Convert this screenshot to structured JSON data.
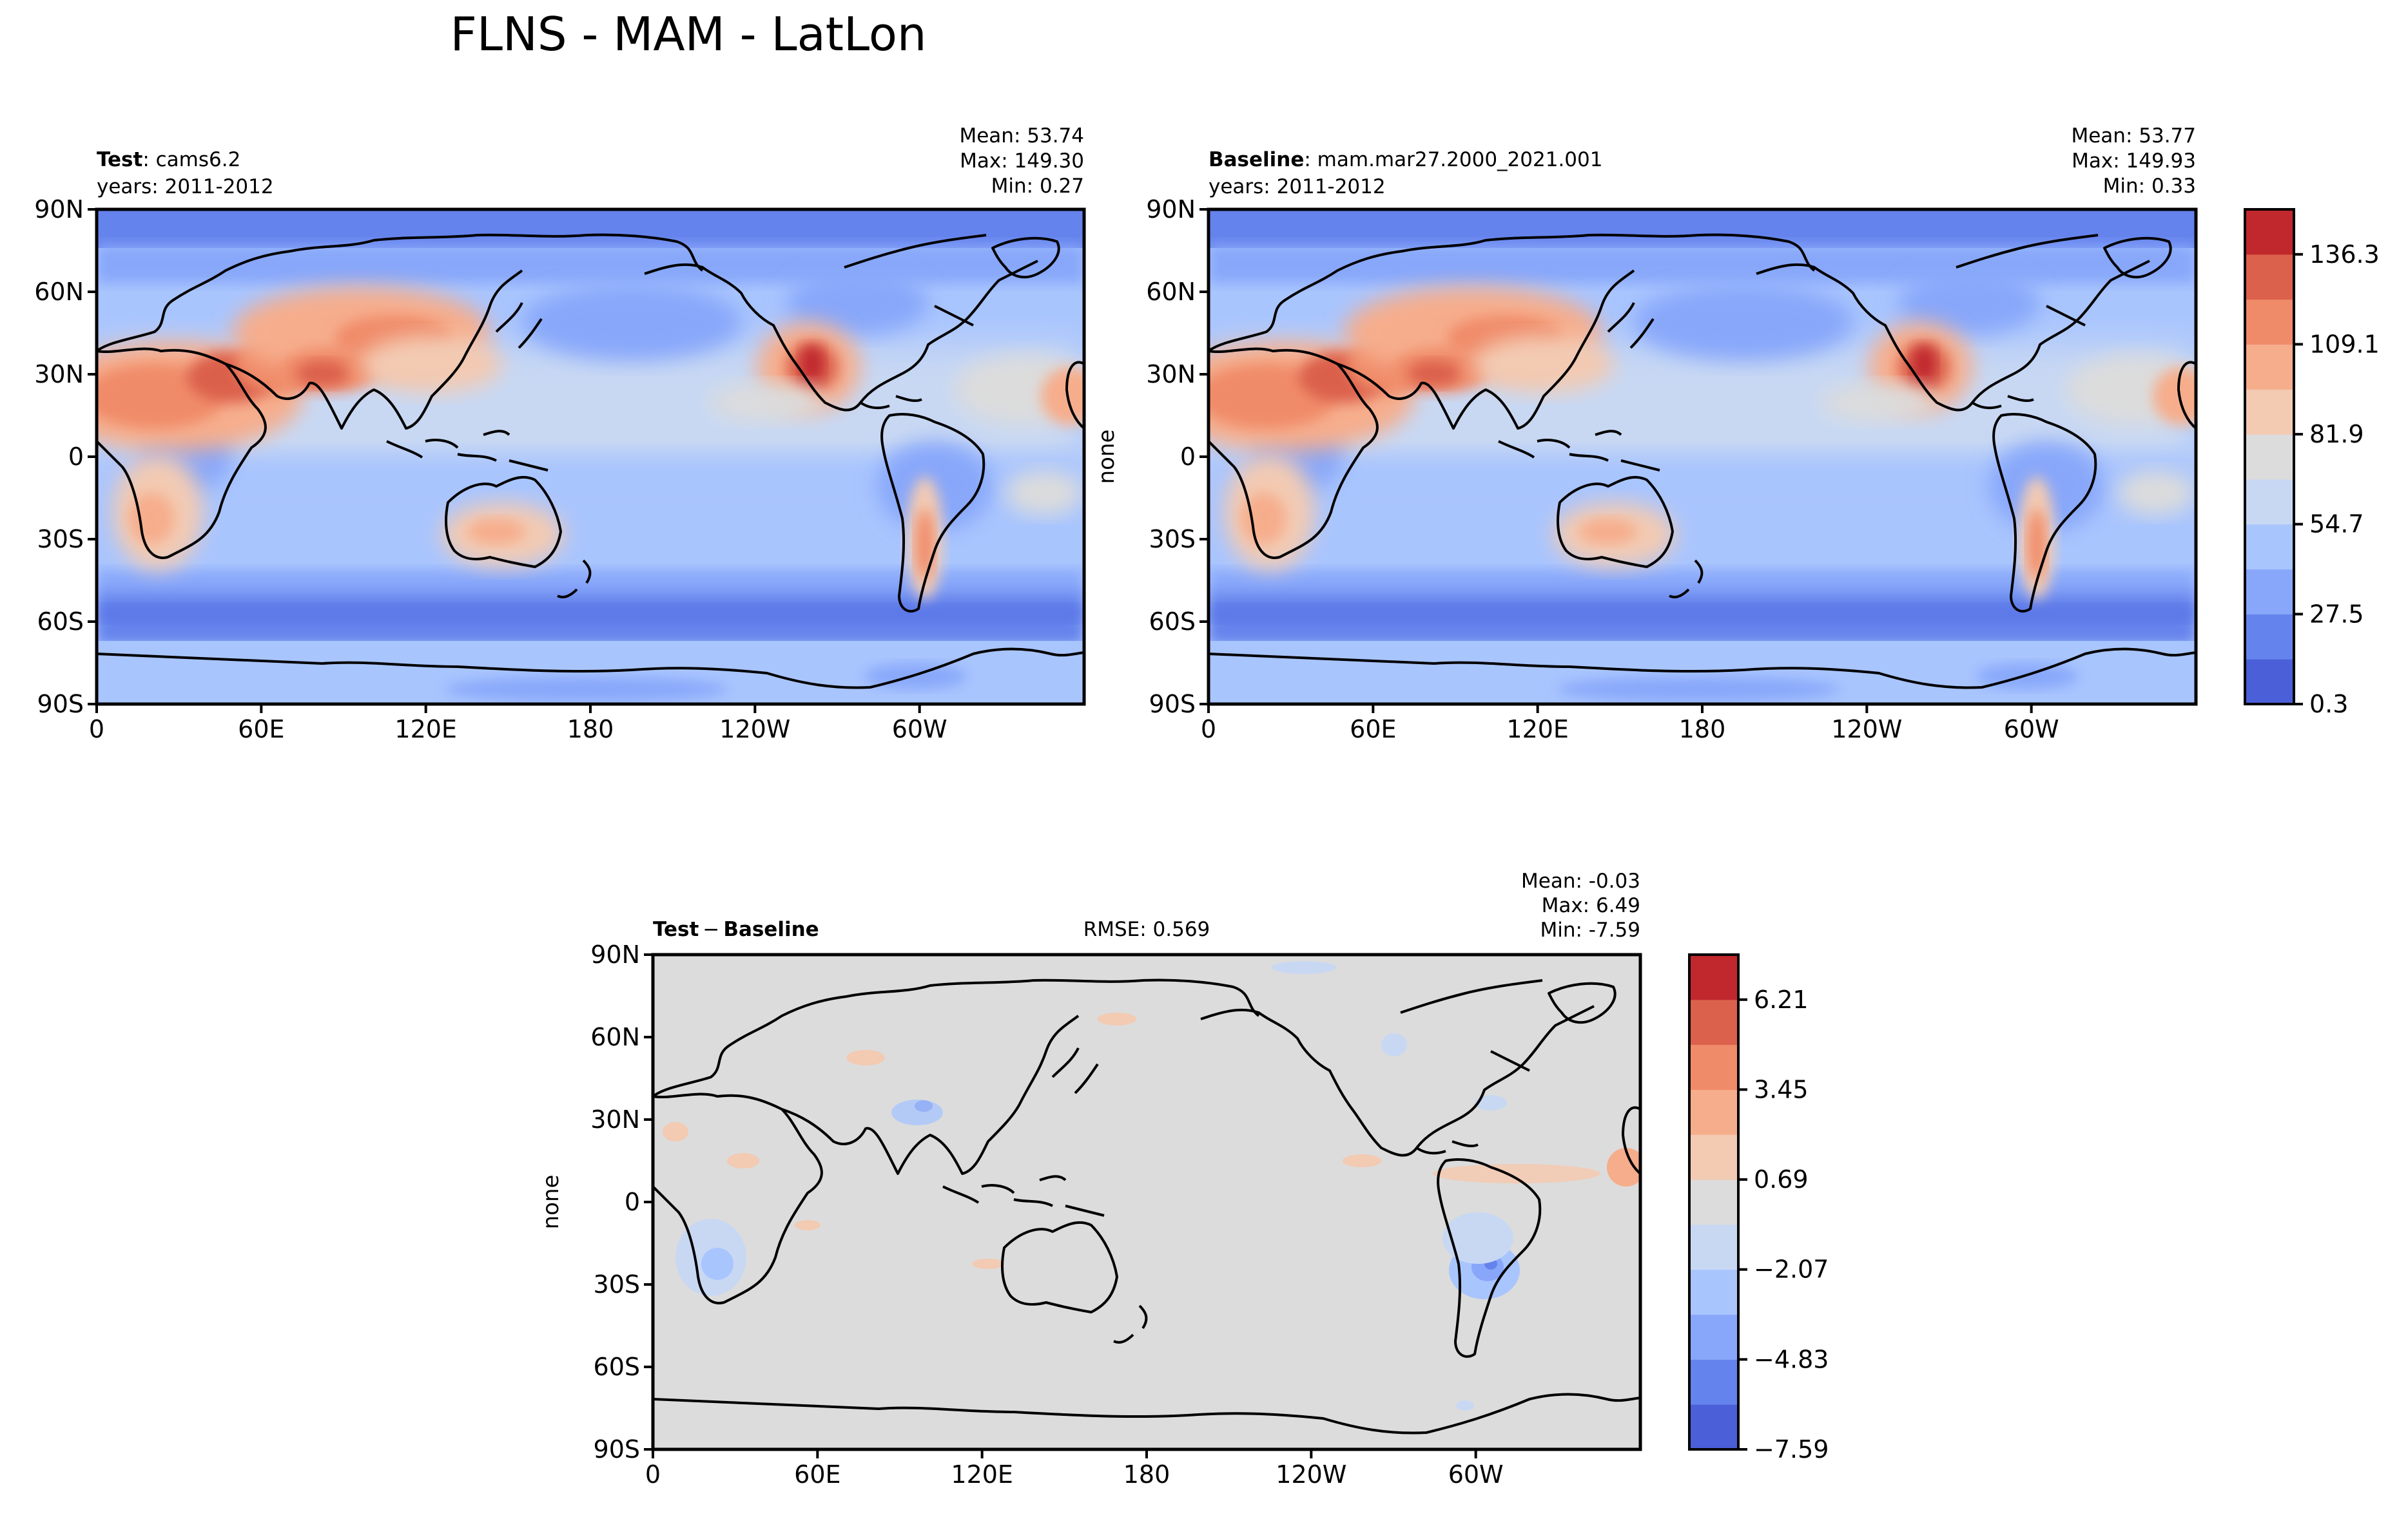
{
  "figure": {
    "title": "FLNS - MAM - LatLon"
  },
  "chart_data": [
    {
      "type": "heatmap",
      "panel": "test",
      "label_bold": "Test",
      "label_rest": ": cams6.2",
      "years": "years: 2011-2012",
      "stats": {
        "mean": "Mean: 53.74",
        "max": "Max: 149.30",
        "min": "Min:  0.27"
      },
      "ylabel": "",
      "xticks": [
        "0",
        "60E",
        "120E",
        "180",
        "120W",
        "60W"
      ],
      "yticks": [
        "90N",
        "60N",
        "30N",
        "0",
        "30S",
        "60S",
        "90S"
      ],
      "xlim": [
        0,
        360
      ],
      "ylim": [
        -90,
        90
      ]
    },
    {
      "type": "heatmap",
      "panel": "baseline",
      "label_bold": "Baseline",
      "label_rest": ": mam.mar27.2000_2021.001",
      "years": "years: 2011-2012",
      "stats": {
        "mean": "Mean: 53.77",
        "max": "Max: 149.93",
        "min": "Min:  0.33"
      },
      "ylabel": "none",
      "xticks": [
        "0",
        "60E",
        "120E",
        "180",
        "120W",
        "60W"
      ],
      "yticks": [
        "90N",
        "60N",
        "30N",
        "0",
        "30S",
        "60S",
        "90S"
      ],
      "xlim": [
        0,
        360
      ],
      "ylim": [
        -90,
        90
      ],
      "colorbar": {
        "ticks": [
          "136.3",
          "109.1",
          "81.9",
          "54.7",
          "27.5",
          "0.3"
        ],
        "colors": [
          "#4a5fd8",
          "#6583ec",
          "#88a7fa",
          "#a9c5fe",
          "#c8d8f3",
          "#dcdcdc",
          "#f3cab2",
          "#f6ad8c",
          "#f08b69",
          "#db614c",
          "#c0282d"
        ]
      }
    },
    {
      "type": "heatmap",
      "panel": "difference",
      "label_bold": "Test",
      "label_sep": "−",
      "label_bold2": "Baseline",
      "rmse": "RMSE: 0.569",
      "stats": {
        "mean": "Mean: -0.03",
        "max": "Max:  6.49",
        "min": "Min: -7.59"
      },
      "ylabel": "none",
      "xticks": [
        "0",
        "60E",
        "120E",
        "180",
        "120W",
        "60W"
      ],
      "yticks": [
        "90N",
        "60N",
        "30N",
        "0",
        "30S",
        "60S",
        "90S"
      ],
      "xlim": [
        0,
        360
      ],
      "ylim": [
        -90,
        90
      ],
      "colorbar": {
        "ticks": [
          "6.21",
          "3.45",
          "0.69",
          "−2.07",
          "−4.83",
          "−7.59"
        ],
        "colors": [
          "#4a5fd8",
          "#6583ec",
          "#88a7fa",
          "#a9c5fe",
          "#c8d8f3",
          "#dcdcdc",
          "#f3cab2",
          "#f6ad8c",
          "#f08b69",
          "#db614c",
          "#c0282d"
        ]
      }
    }
  ]
}
